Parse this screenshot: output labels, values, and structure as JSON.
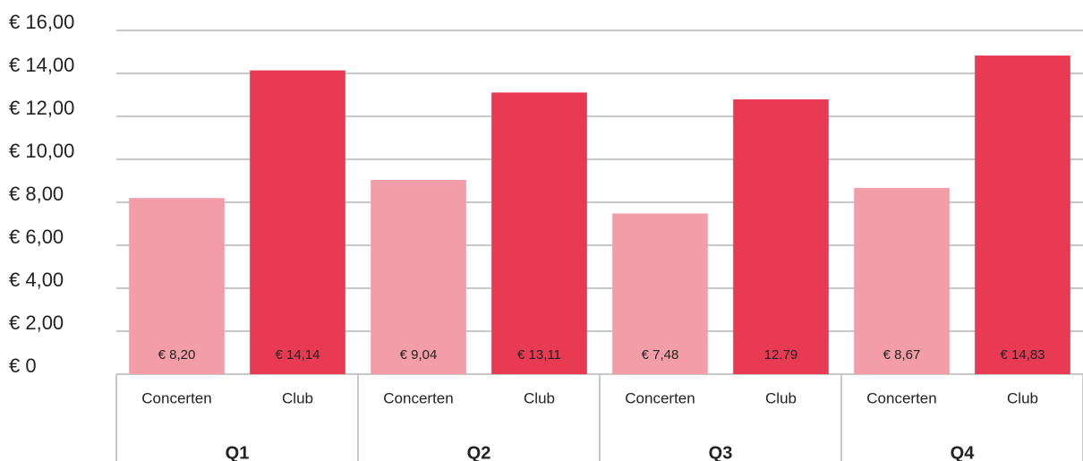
{
  "chart_data": {
    "type": "bar",
    "categories": [
      "Q1",
      "Q2",
      "Q3",
      "Q4"
    ],
    "series": [
      {
        "name": "Concerten",
        "color": "#f39da8",
        "values": [
          8.2,
          9.04,
          7.48,
          8.67
        ],
        "value_labels": [
          "€ 8,20",
          "€ 9,04",
          "€ 7,48",
          "€ 8,67"
        ]
      },
      {
        "name": "Club",
        "color": "#e83a52",
        "values": [
          14.14,
          13.11,
          12.79,
          14.83
        ],
        "value_labels": [
          "€ 14,14",
          "€ 13,11",
          "12.79",
          "€ 14,83"
        ]
      }
    ],
    "ylim": [
      0,
      16
    ],
    "yticks": [
      {
        "value": 0,
        "label": "€ 0"
      },
      {
        "value": 2,
        "label": "€ 2,00"
      },
      {
        "value": 4,
        "label": "€ 4,00"
      },
      {
        "value": 6,
        "label": "€ 6,00"
      },
      {
        "value": 8,
        "label": "€ 8,00"
      },
      {
        "value": 10,
        "label": "€ 10,00"
      },
      {
        "value": 12,
        "label": "€ 12,00"
      },
      {
        "value": 14,
        "label": "€ 14,00"
      },
      {
        "value": 16,
        "label": "€ 16,00"
      }
    ],
    "grid": true
  }
}
